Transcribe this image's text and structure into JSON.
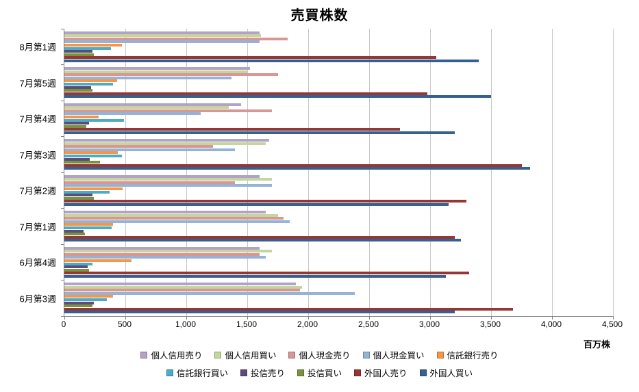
{
  "chart_data": {
    "type": "bar",
    "orientation": "horizontal",
    "grouped": true,
    "title": "売買株数",
    "xlabel": "百万株",
    "xlim": [
      0,
      4500
    ],
    "xmax": 4500,
    "x_tick_step": 500,
    "x_ticks": [
      0,
      500,
      1000,
      1500,
      2000,
      2500,
      3000,
      3500,
      4000,
      4500
    ],
    "x_tick_labels": [
      "0",
      "500",
      "1,000",
      "1,500",
      "2,000",
      "2,500",
      "3,000",
      "3,500",
      "4,000",
      "4,500"
    ],
    "grid": "vertical",
    "legend_position": "bottom",
    "categories": [
      "8月第1週",
      "7月第5週",
      "7月第4週",
      "7月第3週",
      "7月第2週",
      "7月第1週",
      "6月第4週",
      "6月第3週"
    ],
    "series": [
      {
        "name": "個人信用売り",
        "color": "#b2a2c7",
        "values": [
          1600,
          1520,
          1450,
          1680,
          1600,
          1650,
          1600,
          1900
        ]
      },
      {
        "name": "個人信用買い",
        "color": "#c3d69b",
        "values": [
          1610,
          1500,
          1350,
          1650,
          1700,
          1750,
          1700,
          1950
        ]
      },
      {
        "name": "個人現金売り",
        "color": "#d99694",
        "values": [
          1830,
          1750,
          1700,
          1220,
          1400,
          1800,
          1600,
          1930
        ]
      },
      {
        "name": "個人現金買い",
        "color": "#95b3d7",
        "values": [
          1600,
          1370,
          1120,
          1400,
          1700,
          1850,
          1650,
          2380
        ]
      },
      {
        "name": "信託銀行売り",
        "color": "#f79646",
        "values": [
          470,
          430,
          280,
          440,
          480,
          400,
          550,
          400
        ]
      },
      {
        "name": "信託銀行買い",
        "color": "#4bacc6",
        "values": [
          380,
          400,
          490,
          470,
          370,
          390,
          230,
          350
        ]
      },
      {
        "name": "投信売り",
        "color": "#604a7b",
        "values": [
          230,
          220,
          200,
          210,
          230,
          160,
          190,
          240
        ]
      },
      {
        "name": "投信買い",
        "color": "#77933c",
        "values": [
          240,
          230,
          180,
          290,
          240,
          170,
          200,
          230
        ]
      },
      {
        "name": "外国人売り",
        "color": "#953734",
        "values": [
          3050,
          2980,
          2750,
          3750,
          3300,
          3200,
          3320,
          3680
        ]
      },
      {
        "name": "外国人買い",
        "color": "#376092",
        "values": [
          3400,
          3500,
          3200,
          3820,
          3150,
          3250,
          3130,
          3200
        ]
      }
    ]
  }
}
